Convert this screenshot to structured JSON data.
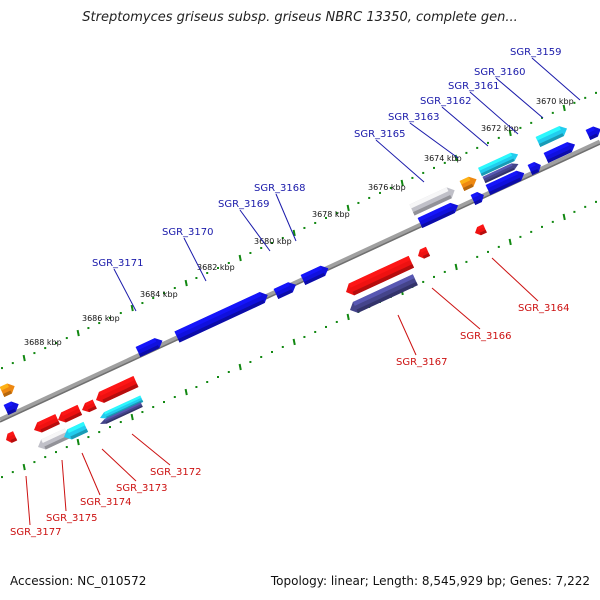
{
  "title": "Streptomyces griseus subsp. griseus NBRC 13350, complete gen...",
  "footer": {
    "accession": "Accession: NC_010572",
    "summary": "Topology: linear; Length: 8,545,929 bp; Genes: 7,222"
  },
  "colors": {
    "blue_gene": "#1010dd",
    "red_gene": "#ee1111",
    "cyan_gene": "#22ccee",
    "orange_gene": "#ee8811",
    "gray_gene": "#c0c0c8",
    "navy_gene": "#44448a",
    "backbone": "#888888",
    "tick": "#118811",
    "label_top": "#1a1aaa",
    "label_bottom": "#cc1111"
  },
  "kbp_labels": [
    "3670 kbp",
    "3672 kbp",
    "3674 kbp",
    "3676 kbp",
    "3678 kbp",
    "3680 kbp",
    "3682 kbp",
    "3684 kbp",
    "3686 kbp",
    "3688 kbp"
  ],
  "top_genes": [
    "SGR_3159",
    "SGR_3160",
    "SGR_3161",
    "SGR_3162",
    "SGR_3163",
    "SGR_3165",
    "SGR_3168",
    "SGR_3169",
    "SGR_3170",
    "SGR_3171"
  ],
  "bottom_genes": [
    "SGR_3164",
    "SGR_3166",
    "SGR_3167",
    "SGR_3172",
    "SGR_3173",
    "SGR_3174",
    "SGR_3175",
    "SGR_3177"
  ]
}
